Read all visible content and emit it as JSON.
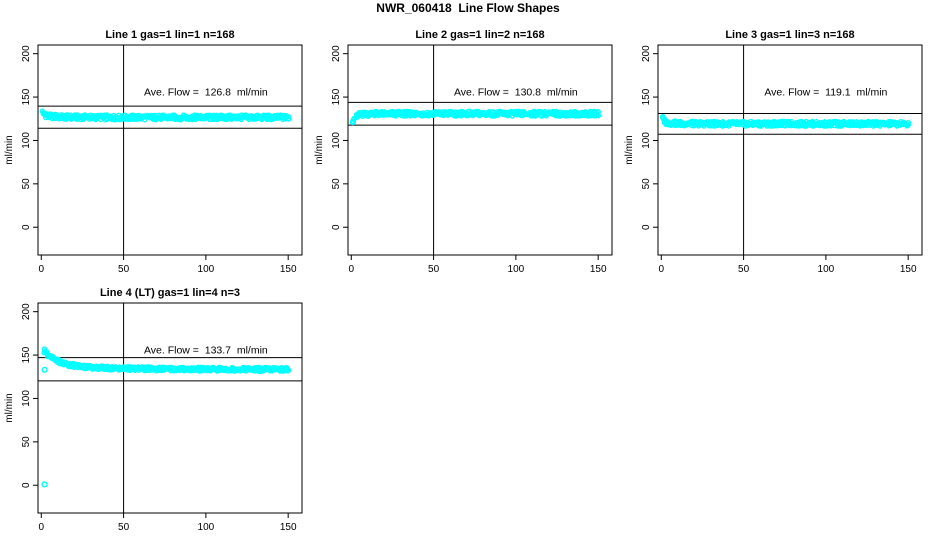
{
  "page_title": "NWR_060418  Line Flow Shapes",
  "colors": {
    "series": "#00FFFF",
    "axis": "#000000",
    "background": "#FFFFFF",
    "text": "#000000"
  },
  "chart_data": [
    {
      "type": "scatter",
      "title": "Line 1 gas=1 lin=1 n=168",
      "annotation": "Ave. Flow =  126.8  ml/min",
      "ave_flow_ml_min": 126.8,
      "ylabel": "ml/min",
      "xlabel": "",
      "x_ticks": [
        0,
        50,
        100,
        150
      ],
      "y_ticks": [
        0,
        50,
        100,
        150,
        200
      ],
      "xlim": [
        -2,
        158.4
      ],
      "ylim": [
        -32,
        210
      ],
      "grid": false,
      "vline_x": 50,
      "ref_lines": [
        139.5,
        114.1
      ],
      "band_spread": 5.5,
      "series_keypoints": [
        [
          1,
          132
        ],
        [
          2,
          130
        ],
        [
          3,
          129
        ],
        [
          5,
          128
        ],
        [
          8,
          127.5
        ],
        [
          12,
          127
        ],
        [
          20,
          126.8
        ],
        [
          40,
          126.5
        ],
        [
          60,
          126.5
        ],
        [
          80,
          126.6
        ],
        [
          100,
          126.5
        ],
        [
          120,
          126.6
        ],
        [
          150,
          126.5
        ]
      ],
      "outliers": []
    },
    {
      "type": "scatter",
      "title": "Line 2 gas=1 lin=2 n=168",
      "annotation": "Ave. Flow =  130.8  ml/min",
      "ave_flow_ml_min": 130.8,
      "ylabel": "ml/min",
      "xlabel": "",
      "x_ticks": [
        0,
        50,
        100,
        150
      ],
      "y_ticks": [
        0,
        50,
        100,
        150,
        200
      ],
      "xlim": [
        -2,
        158.4
      ],
      "ylim": [
        -32,
        210
      ],
      "grid": false,
      "vline_x": 50,
      "ref_lines": [
        143.9,
        117.7
      ],
      "band_spread": 5.5,
      "series_keypoints": [
        [
          1,
          122
        ],
        [
          2,
          125
        ],
        [
          3,
          127.5
        ],
        [
          5,
          129.5
        ],
        [
          8,
          130.5
        ],
        [
          12,
          130.8
        ],
        [
          20,
          130.8
        ],
        [
          40,
          130.8
        ],
        [
          60,
          130.9
        ],
        [
          80,
          130.8
        ],
        [
          100,
          130.8
        ],
        [
          120,
          130.8
        ],
        [
          150,
          130.7
        ]
      ],
      "outliers": [
        [
          1,
          121
        ]
      ]
    },
    {
      "type": "scatter",
      "title": "Line 3 gas=1 lin=3 n=168",
      "annotation": "Ave. Flow =  119.1  ml/min",
      "ave_flow_ml_min": 119.1,
      "ylabel": "ml/min",
      "xlabel": "",
      "x_ticks": [
        0,
        50,
        100,
        150
      ],
      "y_ticks": [
        0,
        50,
        100,
        150,
        200
      ],
      "xlim": [
        -2,
        158.4
      ],
      "ylim": [
        -32,
        210
      ],
      "grid": false,
      "vline_x": 50,
      "ref_lines": [
        131.0,
        107.2
      ],
      "band_spread": 5.5,
      "series_keypoints": [
        [
          1,
          125
        ],
        [
          2,
          122.5
        ],
        [
          3,
          121
        ],
        [
          5,
          120.2
        ],
        [
          8,
          119.8
        ],
        [
          12,
          119.5
        ],
        [
          20,
          119.3
        ],
        [
          40,
          119.2
        ],
        [
          60,
          119.2
        ],
        [
          80,
          119.3
        ],
        [
          100,
          119.1
        ],
        [
          120,
          119.2
        ],
        [
          150,
          119.0
        ]
      ],
      "outliers": []
    },
    {
      "type": "scatter",
      "title": "Line 4 (LT) gas=1 lin=4 n=3",
      "annotation": "Ave. Flow =  133.7  ml/min",
      "ave_flow_ml_min": 133.7,
      "ylabel": "ml/min",
      "xlabel": "",
      "x_ticks": [
        0,
        50,
        100,
        150
      ],
      "y_ticks": [
        0,
        50,
        100,
        150,
        200
      ],
      "xlim": [
        -2,
        158.4
      ],
      "ylim": [
        -32,
        210
      ],
      "grid": false,
      "vline_x": 50,
      "ref_lines": [
        147.1,
        120.3
      ],
      "band_spread": 4.5,
      "series_keypoints": [
        [
          2,
          155
        ],
        [
          3,
          152.5
        ],
        [
          4,
          150.5
        ],
        [
          6,
          147.5
        ],
        [
          8,
          145
        ],
        [
          10,
          143
        ],
        [
          13,
          141
        ],
        [
          16,
          139.5
        ],
        [
          20,
          138
        ],
        [
          25,
          136.8
        ],
        [
          30,
          136
        ],
        [
          40,
          135
        ],
        [
          50,
          134.5
        ],
        [
          60,
          134.2
        ],
        [
          75,
          134
        ],
        [
          90,
          133.8
        ],
        [
          105,
          133.7
        ],
        [
          120,
          133.7
        ],
        [
          135,
          133.5
        ],
        [
          150,
          133.6
        ]
      ],
      "outliers": [
        [
          2,
          133
        ],
        [
          2,
          1
        ]
      ]
    }
  ]
}
